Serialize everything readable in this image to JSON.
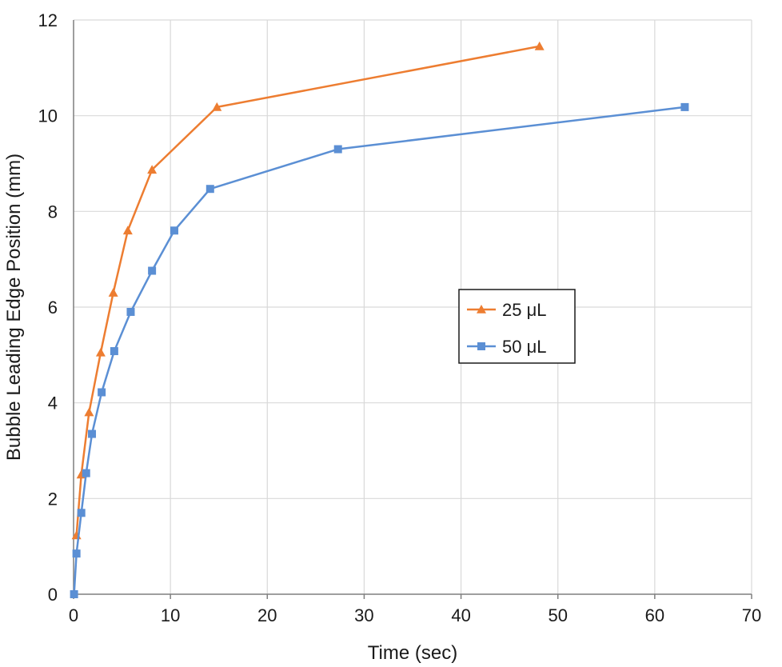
{
  "chart_data": {
    "type": "line",
    "title": "",
    "xlabel": "Time (sec)",
    "ylabel": "Bubble Leading Edge Position (mm)",
    "xlim": [
      0,
      70
    ],
    "ylim": [
      0,
      12
    ],
    "xticks": [
      0,
      10,
      20,
      30,
      40,
      50,
      60,
      70
    ],
    "yticks": [
      0,
      2,
      4,
      6,
      8,
      10,
      12
    ],
    "grid": true,
    "legend_position": "right-center",
    "series": [
      {
        "name": "25 μL",
        "color": "#ed7d31",
        "marker": "triangle",
        "x": [
          0.3,
          0.8,
          1.6,
          2.8,
          4.1,
          5.6,
          8.1,
          14.8,
          48.1
        ],
        "y": [
          1.23,
          2.5,
          3.8,
          5.05,
          6.3,
          7.6,
          8.87,
          10.18,
          11.45
        ]
      },
      {
        "name": "50 μL",
        "color": "#5b8fd4",
        "marker": "square",
        "x": [
          0.05,
          0.3,
          0.8,
          1.3,
          1.9,
          2.9,
          4.2,
          5.9,
          8.1,
          10.4,
          14.1,
          27.3,
          63.1
        ],
        "y": [
          0.0,
          0.85,
          1.7,
          2.53,
          3.35,
          4.22,
          5.08,
          5.9,
          6.76,
          7.6,
          8.47,
          9.3,
          10.18
        ]
      }
    ]
  }
}
